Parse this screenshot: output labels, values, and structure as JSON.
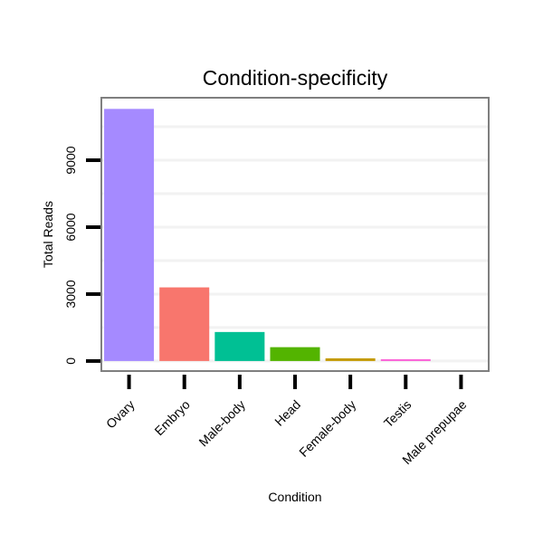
{
  "chart_data": {
    "type": "bar",
    "title": "Condition-specificity",
    "xlabel": "Condition",
    "ylabel": "Total Reads",
    "categories": [
      "Ovary",
      "Embryo",
      "Male-body",
      "Head",
      "Female-body",
      "Testis",
      "Male prepupae"
    ],
    "values": [
      11300,
      3300,
      1300,
      620,
      120,
      80,
      0
    ],
    "colors": [
      "#A58AFF",
      "#F8766D",
      "#00C094",
      "#53B400",
      "#C49A00",
      "#FB61D7",
      "#00B6EB"
    ],
    "yticks": [
      0,
      3000,
      6000,
      9000
    ],
    "ylim": [
      -450,
      11800
    ],
    "grid": true,
    "legend": "none",
    "panel_border_color": "#7f7f7f",
    "gridline_color": "#f2f2f2"
  }
}
